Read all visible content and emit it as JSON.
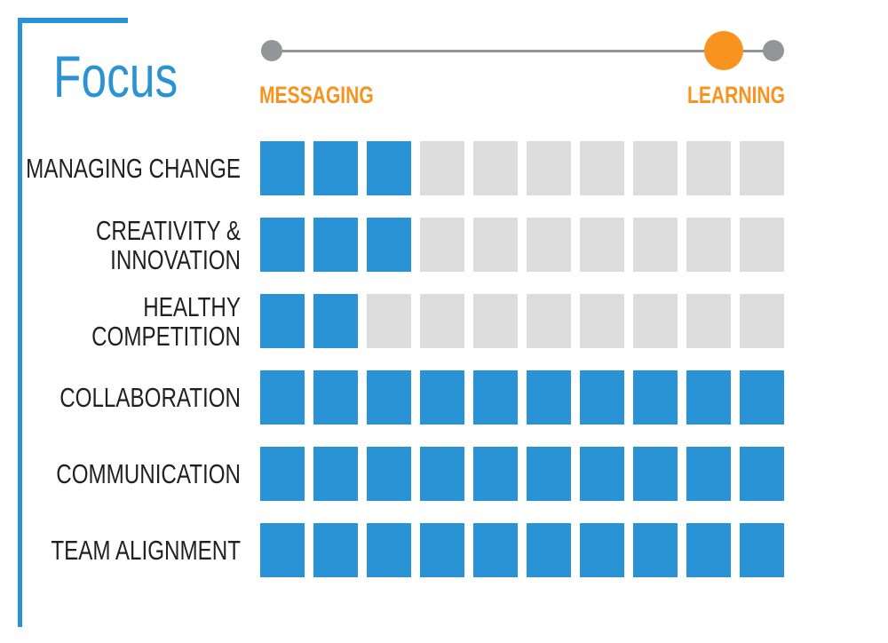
{
  "title": "Focus",
  "slider": {
    "left_label": "MESSAGING",
    "right_label": "LEARNING",
    "position_fraction": 0.9,
    "track_color": "#939598",
    "knob_color": "#f7931e"
  },
  "chart_data": {
    "type": "table",
    "max": 10,
    "filled_color": "#2a93d5",
    "empty_color": "#dcdcdc",
    "rows": [
      {
        "label_lines": [
          "MANAGING CHANGE"
        ],
        "value": 3
      },
      {
        "label_lines": [
          "CREATIVITY &",
          "INNOVATION"
        ],
        "value": 3
      },
      {
        "label_lines": [
          "HEALTHY",
          "COMPETITION"
        ],
        "value": 2
      },
      {
        "label_lines": [
          "COLLABORATION"
        ],
        "value": 10
      },
      {
        "label_lines": [
          "COMMUNICATION"
        ],
        "value": 10
      },
      {
        "label_lines": [
          "TEAM ALIGNMENT"
        ],
        "value": 10
      }
    ]
  }
}
